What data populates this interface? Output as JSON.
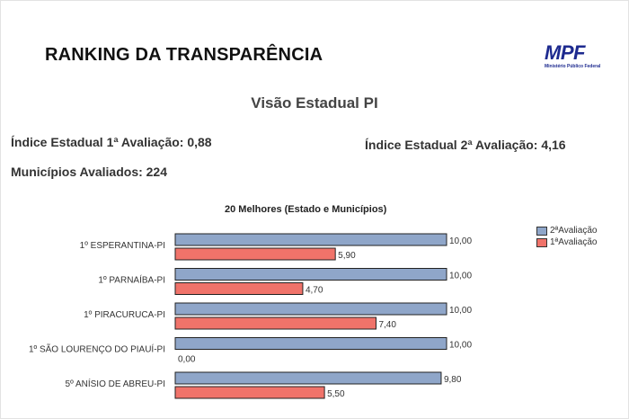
{
  "header": {
    "title": "RANKING DA TRANSPARÊNCIA",
    "logo_text": "MPF",
    "logo_subtext": "Ministério Público Federal"
  },
  "subtitle": "Visão Estadual PI",
  "stats": {
    "indice_1": "Índice Estadual 1ª Avaliação: 0,88",
    "indice_2": "Índice Estadual 2ª Avaliação: 4,16",
    "municipios": "Municípios Avaliados: 224"
  },
  "colors": {
    "second_eval": "#8fa6c9",
    "first_eval": "#f0736a"
  },
  "chart_data": {
    "type": "bar",
    "orientation": "horizontal",
    "title": "20 Melhores (Estado e Municípios)",
    "categories": [
      "1º ESPERANTINA-PI",
      "1º PARNAÍBA-PI",
      "1º PIRACURUCA-PI",
      "1º SÃO LOURENÇO DO PIAUÍ-PI",
      "5º ANÍSIO DE ABREU-PI"
    ],
    "series": [
      {
        "name": "2ªAvaliação",
        "values": [
          10.0,
          10.0,
          10.0,
          10.0,
          9.8
        ],
        "labels": [
          "10,00",
          "10,00",
          "10,00",
          "10,00",
          "9,80"
        ],
        "color": "#8fa6c9"
      },
      {
        "name": "1ªAvaliação",
        "values": [
          5.9,
          4.7,
          7.4,
          0.0,
          5.5
        ],
        "labels": [
          "5,90",
          "4,70",
          "7,40",
          "0,00",
          "5,50"
        ],
        "color": "#f0736a"
      }
    ],
    "xlim": [
      0,
      10
    ],
    "grid": false,
    "legend": "top-right"
  }
}
